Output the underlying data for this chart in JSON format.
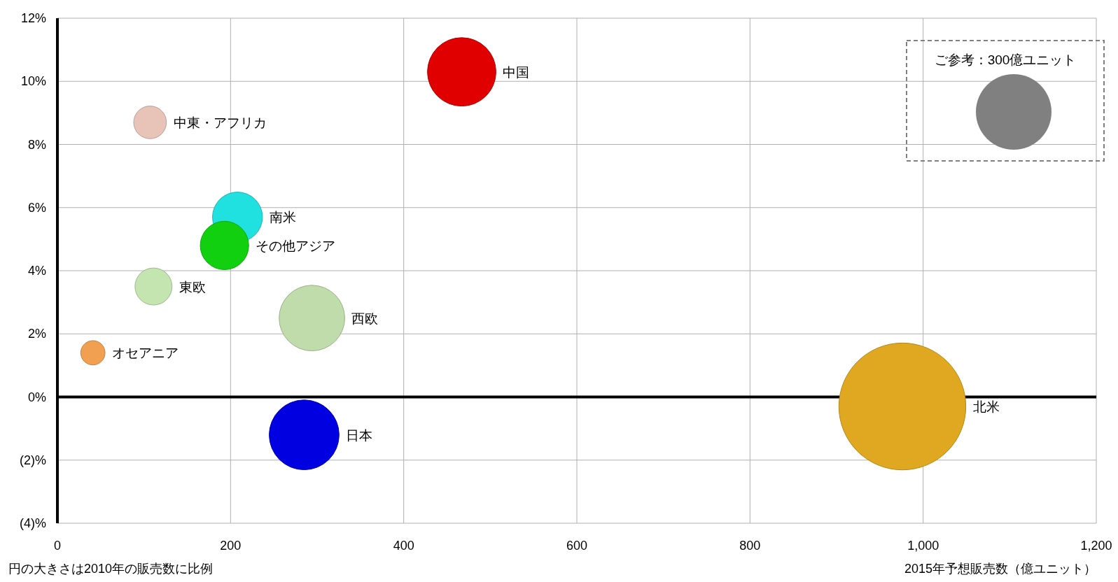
{
  "chart_data": {
    "type": "bubble",
    "xlabel": "2015年予想販売数（億ユニット）",
    "annotations": [
      "円の大きさは2010年の販売数に比例"
    ],
    "xlim": [
      0,
      1200
    ],
    "xticks": [
      0,
      200,
      400,
      600,
      800,
      {
        "value": 1000,
        "label": "1,000"
      },
      {
        "value": 1200,
        "label": "1,200"
      }
    ],
    "ylim": [
      -4,
      12
    ],
    "yticks": [
      {
        "value": -4,
        "label": "(4)%"
      },
      {
        "value": -2,
        "label": "(2)%"
      },
      {
        "value": 0,
        "label": "0%"
      },
      {
        "value": 2,
        "label": "2%"
      },
      {
        "value": 4,
        "label": "4%"
      },
      {
        "value": 6,
        "label": "6%"
      },
      {
        "value": 8,
        "label": "8%"
      },
      {
        "value": 10,
        "label": "10%"
      },
      {
        "value": 12,
        "label": "12%"
      }
    ],
    "grid": true,
    "size_legend": [
      {
        "value": 300,
        "label": "ご参考：300億ユニット"
      }
    ],
    "series": [
      {
        "name": "中国",
        "color": "#e00000",
        "x": [
          467
        ],
        "values": [
          10.3
        ],
        "sizes": [
          246
        ]
      },
      {
        "name": "中東・アフリカ",
        "color": "#e8c4b8",
        "x": [
          107
        ],
        "values": [
          8.7
        ],
        "sizes": [
          56
        ]
      },
      {
        "name": "南米",
        "color": "#20e0e0",
        "x": [
          208
        ],
        "values": [
          5.7
        ],
        "sizes": [
          131
        ]
      },
      {
        "name": "その他アジア",
        "color": "#10d010",
        "x": [
          193
        ],
        "values": [
          4.8
        ],
        "sizes": [
          123
        ]
      },
      {
        "name": "東欧",
        "color": "#c4e4b0",
        "x": [
          111
        ],
        "values": [
          3.5
        ],
        "sizes": [
          72
        ]
      },
      {
        "name": "西欧",
        "color": "#c0dcaa",
        "x": [
          294
        ],
        "values": [
          2.5
        ],
        "sizes": [
          226
        ]
      },
      {
        "name": "オセアニア",
        "color": "#f0a050",
        "x": [
          41
        ],
        "values": [
          1.4
        ],
        "sizes": [
          31
        ]
      },
      {
        "name": "日本",
        "color": "#0000e0",
        "x": [
          285
        ],
        "values": [
          -1.2
        ],
        "sizes": [
          256
        ]
      },
      {
        "name": "北米",
        "color": "#e0a820",
        "x": [
          976
        ],
        "values": [
          -0.3
        ],
        "sizes": [
          846
        ]
      }
    ]
  }
}
